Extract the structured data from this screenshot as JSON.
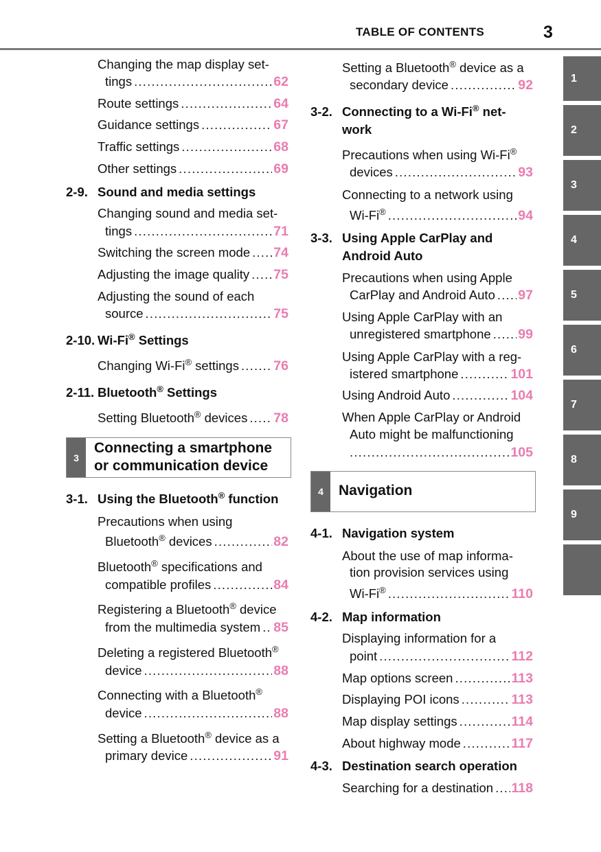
{
  "header": {
    "title": "TABLE OF CONTENTS",
    "page_number": "3"
  },
  "side_tabs": [
    "1",
    "2",
    "3",
    "4",
    "5",
    "6",
    "7",
    "8",
    "9",
    ""
  ],
  "colors": {
    "page_number": "#e97cb0",
    "tab": "#666666",
    "rule": "#7a7a7a"
  },
  "left_column": [
    {
      "type": "entry",
      "lines": [
        "Changing the map display set-",
        "tings"
      ],
      "page": "62"
    },
    {
      "type": "entry",
      "lines": [
        "Route settings"
      ],
      "page": "64"
    },
    {
      "type": "entry",
      "lines": [
        "Guidance settings"
      ],
      "page": "67"
    },
    {
      "type": "entry",
      "lines": [
        "Traffic settings"
      ],
      "page": "68"
    },
    {
      "type": "entry",
      "lines": [
        "Other settings"
      ],
      "page": "69"
    },
    {
      "type": "heading",
      "num": "2-9.",
      "lines": [
        "Sound and media settings"
      ]
    },
    {
      "type": "entry",
      "lines": [
        "Changing sound and media set-",
        "tings"
      ],
      "page": "71"
    },
    {
      "type": "entry",
      "lines": [
        "Switching the screen mode"
      ],
      "page": "74"
    },
    {
      "type": "entry",
      "lines": [
        "Adjusting the image quality"
      ],
      "page": "75"
    },
    {
      "type": "entry",
      "lines": [
        "Adjusting the sound of each",
        "source"
      ],
      "page": "75"
    },
    {
      "type": "heading",
      "num": "2-10.",
      "lines": [
        "Wi-Fi® Settings"
      ]
    },
    {
      "type": "entry",
      "lines": [
        "Changing Wi-Fi® settings"
      ],
      "page": "76"
    },
    {
      "type": "heading",
      "num": "2-11.",
      "lines": [
        "Bluetooth® Settings"
      ]
    },
    {
      "type": "entry",
      "lines": [
        "Setting Bluetooth® devices"
      ],
      "page": "78"
    },
    {
      "type": "section",
      "num": "3",
      "lines": [
        "Connecting a smartphone",
        "or communication device"
      ]
    },
    {
      "type": "heading",
      "num": "3-1.",
      "lines": [
        "Using the Bluetooth® function"
      ]
    },
    {
      "type": "entry",
      "lines": [
        "Precautions when using",
        "Bluetooth® devices"
      ],
      "page": "82"
    },
    {
      "type": "entry",
      "lines": [
        "Bluetooth® specifications and",
        "compatible profiles"
      ],
      "page": "84"
    },
    {
      "type": "entry",
      "lines": [
        "Registering a Bluetooth® device",
        "from the multimedia system"
      ],
      "page": "85"
    },
    {
      "type": "entry",
      "lines": [
        "Deleting a registered Bluetooth®",
        "device"
      ],
      "page": "88"
    },
    {
      "type": "entry",
      "lines": [
        "Connecting with a Bluetooth®",
        "device"
      ],
      "page": "88"
    },
    {
      "type": "entry",
      "lines": [
        "Setting a Bluetooth® device as a",
        "primary device"
      ],
      "page": "91"
    }
  ],
  "right_column": [
    {
      "type": "entry",
      "lines": [
        "Setting a Bluetooth® device as a",
        "secondary device"
      ],
      "page": "92"
    },
    {
      "type": "heading",
      "num": "3-2.",
      "lines": [
        "Connecting to a Wi-Fi® net-",
        "work"
      ]
    },
    {
      "type": "entry",
      "lines": [
        "Precautions when using Wi-Fi®",
        "devices"
      ],
      "page": "93"
    },
    {
      "type": "entry",
      "lines": [
        "Connecting to a network using",
        "Wi-Fi®"
      ],
      "page": "94"
    },
    {
      "type": "heading",
      "num": "3-3.",
      "lines": [
        "Using Apple CarPlay and",
        "Android Auto"
      ]
    },
    {
      "type": "entry",
      "lines": [
        "Precautions when using Apple",
        "CarPlay and Android Auto"
      ],
      "page": "97"
    },
    {
      "type": "entry",
      "lines": [
        "Using Apple CarPlay with an",
        "unregistered smartphone"
      ],
      "page": "99"
    },
    {
      "type": "entry",
      "lines": [
        "Using Apple CarPlay with a reg-",
        "istered smartphone"
      ],
      "page": "101"
    },
    {
      "type": "entry",
      "lines": [
        "Using Android Auto"
      ],
      "page": "104"
    },
    {
      "type": "entry",
      "lines": [
        "When Apple CarPlay or Android",
        "Auto might be malfunctioning",
        ""
      ],
      "page": "105"
    },
    {
      "type": "section",
      "num": "4",
      "lines": [
        "Navigation"
      ]
    },
    {
      "type": "heading",
      "num": "4-1.",
      "lines": [
        "Navigation system"
      ]
    },
    {
      "type": "entry",
      "lines": [
        "About the use of map informa-",
        "tion provision services using",
        "Wi-Fi®"
      ],
      "page": "110"
    },
    {
      "type": "heading",
      "num": "4-2.",
      "lines": [
        "Map information"
      ]
    },
    {
      "type": "entry",
      "lines": [
        "Displaying information for a",
        "point"
      ],
      "page": "112"
    },
    {
      "type": "entry",
      "lines": [
        "Map options screen"
      ],
      "page": "113"
    },
    {
      "type": "entry",
      "lines": [
        "Displaying POI icons"
      ],
      "page": "113"
    },
    {
      "type": "entry",
      "lines": [
        "Map display settings"
      ],
      "page": "114"
    },
    {
      "type": "entry",
      "lines": [
        "About highway mode"
      ],
      "page": "117"
    },
    {
      "type": "heading",
      "num": "4-3.",
      "lines": [
        "Destination search operation"
      ]
    },
    {
      "type": "entry",
      "lines": [
        "Searching for a destination"
      ],
      "page": "118"
    }
  ]
}
